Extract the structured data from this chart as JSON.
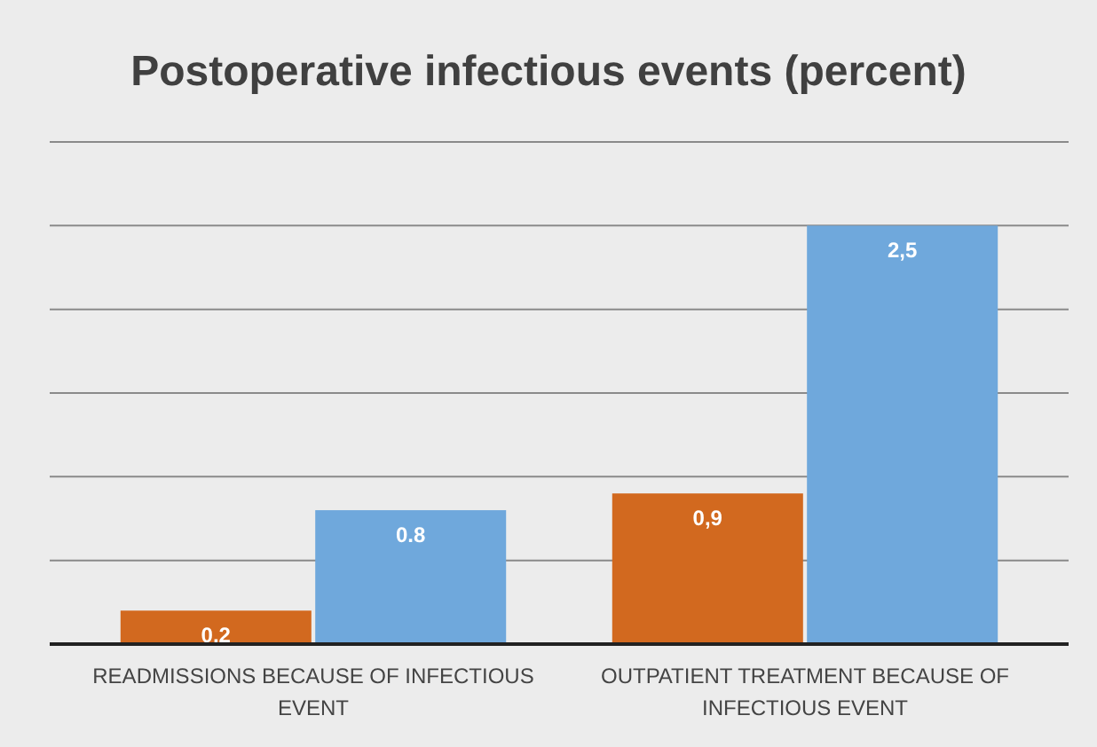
{
  "chart_data": {
    "type": "bar",
    "title": "Postoperative infectious events (percent)",
    "categories": [
      "READMISSIONS BECAUSE OF INFECTIOUS EVENT",
      "OUTPATIENT TREATMENT BECAUSE OF INFECTIOUS EVENT"
    ],
    "series": [
      {
        "color": "#d2691f",
        "values": [
          0.2,
          0.9
        ],
        "value_labels": [
          "0,2",
          "0,9"
        ]
      },
      {
        "color": "#6fa8dc",
        "values": [
          0.8,
          2.5
        ],
        "value_labels": [
          "0.8",
          "2,5"
        ]
      }
    ],
    "ylim": [
      0,
      3
    ],
    "yticks": [
      {
        "value": 0,
        "label": null
      },
      {
        "value": 0.5,
        "label": null
      },
      {
        "value": 1,
        "label": null
      },
      {
        "value": 1.5,
        "label": null
      },
      {
        "value": 2,
        "label": null
      },
      {
        "value": 2.5,
        "label": null
      },
      {
        "value": 3,
        "label": null
      }
    ],
    "tick_labels": "x",
    "grid": "y"
  }
}
